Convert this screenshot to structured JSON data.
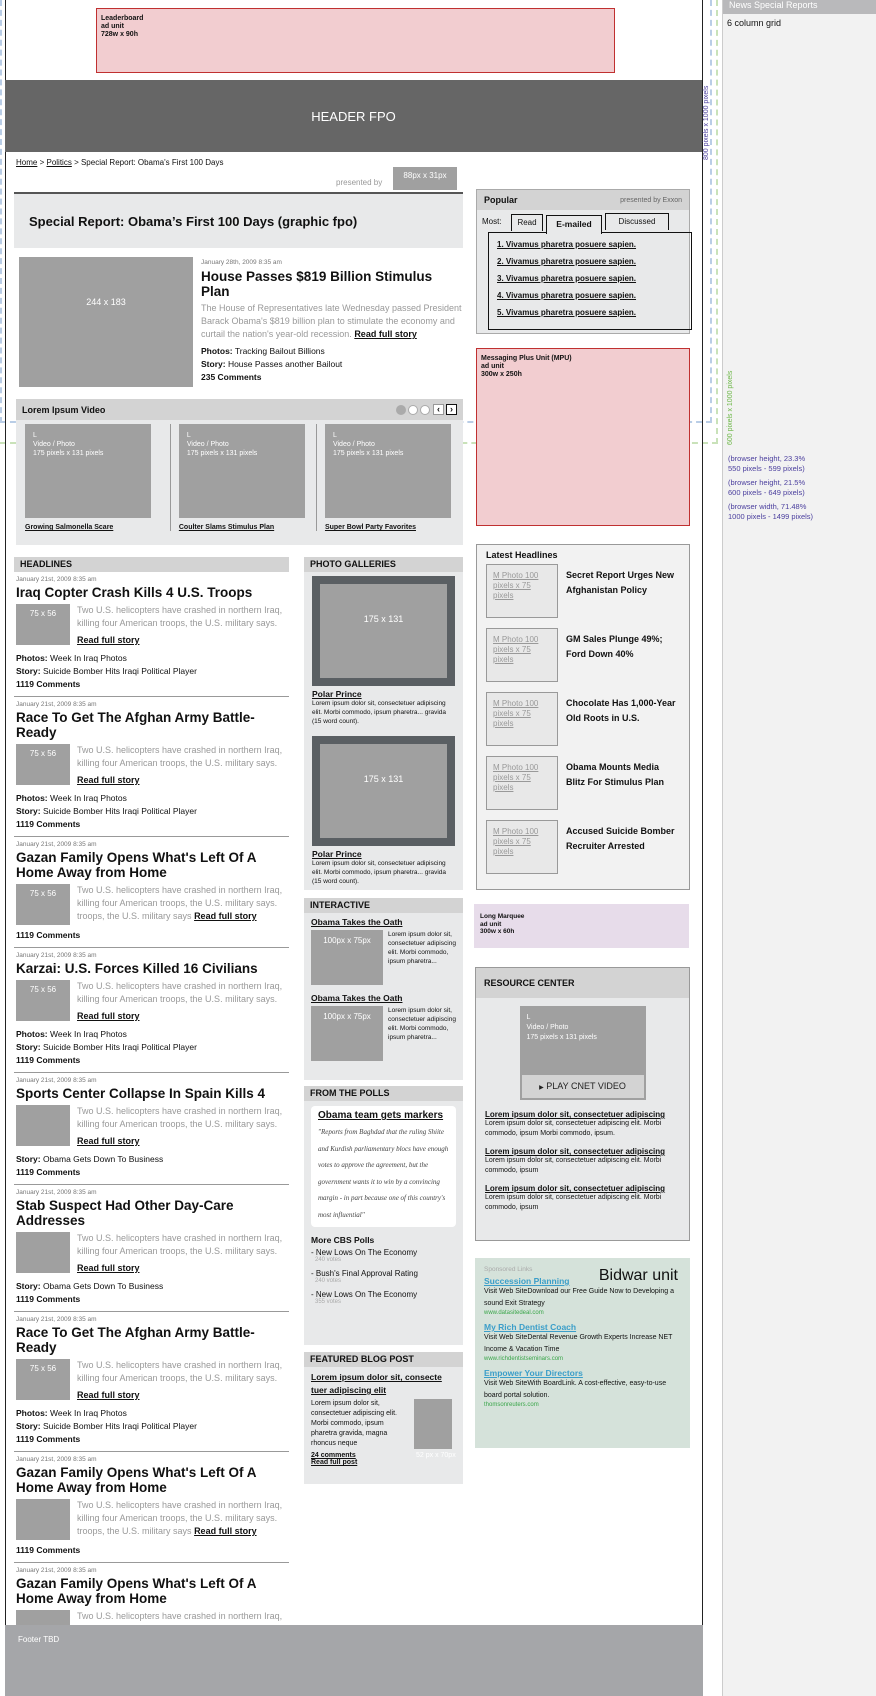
{
  "right_panel": {
    "title": "News Special Reports",
    "grid": "6 column grid",
    "vertical_800": "800 pixels x 1000 pixels",
    "vertical_600": "600 pixels x 1000 pixels",
    "notes": [
      {
        "line1": "(browser height, 23.3%",
        "line2": "550 pixels - 599 pixels)"
      },
      {
        "line1": "(browser height, 21.5%",
        "line2": "600 pixels - 649 pixels)"
      },
      {
        "line1": "(browser width, 71.48%",
        "line2": "1000 pixels - 1499 pixels)"
      }
    ]
  },
  "leaderboard": {
    "line1": "Leaderboard",
    "line2": "ad unit",
    "line3": "728w x 90h"
  },
  "header": {
    "label": "HEADER FPO"
  },
  "breadcrumb": {
    "home": "Home",
    "politics": "Politics",
    "current": "Special Report: Obama's First 100 Days",
    "sep": ">"
  },
  "sponsor": {
    "presented_by": "presented by",
    "box": "88px x 31px"
  },
  "special_title": "Special Report: Obama’s First 100 Days (graphic fpo)",
  "feature": {
    "image": "244 x 183",
    "date": "January 28th, 2009 8:35 am",
    "title": "House Passes $819 Billion Stimulus Plan",
    "summary": "The House of Representatives late Wednesday passed President Barack Obama's $819 billion plan to stimulate the economy and curtail the nation's year-old recession.",
    "read": "Read full story",
    "photos_label": "Photos:",
    "photos": "Tracking Bailout Billions",
    "story_label": "Story:",
    "story": "House Passes another Bailout",
    "comments": "235 Comments"
  },
  "video": {
    "title": "Lorem Ipsum Video",
    "items": [
      {
        "l": "L",
        "t1": "Video / Photo",
        "t2": "175 pixels x 131 pixels",
        "caption": "Growing Salmonella Scare"
      },
      {
        "l": "L",
        "t1": "Video / Photo",
        "t2": "175 pixels x 131 pixels",
        "caption": "Coulter Slams Stimulus Plan"
      },
      {
        "l": "L",
        "t1": "Video / Photo",
        "t2": "175 pixels x 131 pixels",
        "caption": "Super Bowl Party Favorites"
      }
    ],
    "page_count": 3,
    "active_page": 1
  },
  "headlines": {
    "title": "HEADLINES",
    "articles": [
      {
        "date": "January 21st, 2009 8:35 am",
        "title": "Iraq Copter Crash Kills 4 U.S. Troops",
        "thumb": "75 x 56",
        "summary": "Two U.S. helicopters have crashed in northern Iraq, killing four American troops, the U.S. military says.",
        "read": "Read full story",
        "photos": "Week In Iraq Photos",
        "story": "Suicide Bomber Hits Iraqi Political Player",
        "comments": "1119 Comments"
      },
      {
        "date": "January 21st, 2009 8:35 am",
        "title": "Race To Get The Afghan Army Battle-Ready",
        "thumb": "75 x 56",
        "summary": "Two U.S. helicopters have crashed in northern Iraq, killing four American troops, the U.S. military says.",
        "read": "Read full story",
        "photos": "Week In Iraq Photos",
        "story": "Suicide Bomber Hits Iraqi Political Player",
        "comments": "1119 Comments"
      },
      {
        "date": "January 21st, 2009 8:35 am",
        "title": "Gazan Family Opens What's Left Of A Home Away from Home",
        "thumb": "75 x 56",
        "summary": "Two U.S. helicopters have crashed in northern Iraq, killing four American troops, the U.S. military says. troops, the U.S. military says",
        "read_inline": "Read full story",
        "comments": "1119 Comments"
      },
      {
        "date": "January 21st, 2009 8:35 am",
        "title": "Karzai: U.S. Forces Killed 16 Civilians",
        "thumb": "75 x 56",
        "summary": "Two U.S. helicopters have crashed in northern Iraq, killing four American troops, the U.S. military says.",
        "read": "Read full story",
        "photos": "Week In Iraq Photos",
        "story": "Suicide Bomber Hits Iraqi Political Player",
        "comments": "1119 Comments"
      },
      {
        "date": "January 21st, 2009 8:35 am",
        "title": "Sports Center Collapse In Spain Kills 4",
        "thumb": "",
        "summary": "Two U.S. helicopters have crashed in northern Iraq, killing four American troops, the U.S. military says.",
        "read": "Read full story",
        "story": "Obama Gets Down To Business",
        "comments": "1119 Comments"
      },
      {
        "date": "January 21st, 2009 8:35 am",
        "title": "Stab Suspect Had Other Day-Care Addresses",
        "thumb": "",
        "summary": "Two U.S. helicopters have crashed in northern Iraq, killing four American troops, the U.S. military says.",
        "read": "Read full story",
        "story": "Obama Gets Down To Business",
        "comments": "1119 Comments"
      },
      {
        "date": "January 21st, 2009 8:35 am",
        "title": "Race To Get The Afghan Army Battle-Ready",
        "thumb": "75 x 56",
        "summary": "Two U.S. helicopters have crashed in northern Iraq, killing four American troops, the U.S. military says.",
        "read": "Read full story",
        "photos": "Week In Iraq Photos",
        "story": "Suicide Bomber Hits Iraqi Political Player",
        "comments": "1119 Comments"
      },
      {
        "date": "January 21st, 2009 8:35 am",
        "title": "Gazan Family Opens What's Left Of A Home Away from Home",
        "thumb": "",
        "summary": "Two U.S. helicopters have crashed in northern Iraq, killing four American troops, the U.S. military says. troops, the U.S. military says",
        "read_inline": "Read full story",
        "comments": "1119 Comments"
      },
      {
        "date": "January 21st, 2009 8:35 am",
        "title": "Gazan Family Opens What's Left Of A Home Away from Home",
        "thumb": "",
        "summary": "Two U.S. helicopters have crashed in northern Iraq, killing four American troops, the U.S. military says. troops, the U.S. military says",
        "read_inline": "Read full story",
        "comments": "1119 Comments"
      }
    ],
    "photos_label": "Photos:",
    "story_label": "Story:"
  },
  "galleries": {
    "title": "PHOTO GALLERIES",
    "items": [
      {
        "image": "175 x 131",
        "title": "Polar Prince",
        "text": "Lorem ipsum dolor sit, consectetuer adipiscing elit. Morbi commodo, ipsum pharetra... gravida (15 word count)."
      },
      {
        "image": "175 x 131",
        "title": "Polar Prince",
        "text": "Lorem ipsum dolor sit, consectetuer adipiscing elit. Morbi commodo, ipsum pharetra... gravida (15 word count)."
      }
    ]
  },
  "interactive": {
    "title": "INTERACTIVE",
    "items": [
      {
        "title": "Obama Takes the Oath",
        "image": "100px x 75px",
        "text": "Lorem ipsum dolor sit, consectetuer adipiscing elit. Morbi commodo, ipsum pharetra..."
      },
      {
        "title": "Obama Takes the Oath",
        "image": "100px x 75px",
        "text": "Lorem ipsum dolor sit, consectetuer adipiscing elit. Morbi commodo, ipsum pharetra..."
      }
    ]
  },
  "polls": {
    "title": "FROM THE POLLS",
    "card_title": "Obama team gets markers",
    "quote": "\"Reports from Baghdad that the ruling Shiite and Kurdish parliamentary blocs have enough votes to approve the agreement, but the government wants it to win by a convincing margin - in part because one of this country's most influential\"",
    "more": "More CBS Polls",
    "items": [
      {
        "label": "- New Lows On The Economy",
        "votes": "240 votes"
      },
      {
        "label": "- Bush's Final Approval Rating",
        "votes": "240 votes"
      },
      {
        "label": "- New Lows On The Economy",
        "votes": "355 votes"
      }
    ]
  },
  "blog": {
    "title": "FEATURED BLOG POST",
    "post_title": "Lorem ipsum dolor sit, consecte tuer adipiscing elit",
    "text": "Lorem ipsum dolor sit, consectetuer adipiscing elit. Morbi commodo, ipsum pharetra gravida, magna rhoncus neque",
    "comments": "24 comments",
    "read": "Read full post",
    "image": "52 px x 70px"
  },
  "popular": {
    "title": "Popular",
    "presented": "presented by Exxon",
    "most": "Most:",
    "tabs": [
      "Read",
      "E-mailed",
      "Discussed"
    ],
    "active_tab": "E-mailed",
    "items": [
      "1. Vivamus pharetra posuere sapien.",
      "2. Vivamus pharetra posuere sapien.",
      "3. Vivamus pharetra posuere sapien.",
      "4. Vivamus pharetra posuere sapien.",
      "5. Vivamus pharetra posuere sapien."
    ]
  },
  "mpu": {
    "line1": "Messaging Plus Unit (MPU)",
    "line2": "ad unit",
    "line3": "300w x 250h"
  },
  "latest": {
    "title": "Latest Headlines",
    "items": [
      {
        "photo": "M Photo 100 pixels x 75 pixels",
        "title": "Secret Report Urges New Afghanistan Policy"
      },
      {
        "photo": "M Photo 100 pixels x 75 pixels",
        "title": "GM Sales Plunge 49%; Ford Down 40%"
      },
      {
        "photo": "M Photo 100 pixels x 75 pixels",
        "title": "Chocolate Has 1,000-Year Old Roots in U.S."
      },
      {
        "photo": "M Photo 100 pixels x 75 pixels",
        "title": "Obama Mounts Media Blitz For Stimulus Plan"
      },
      {
        "photo": "M Photo 100 pixels x 75 pixels",
        "title": "Accused Suicide Bomber Recruiter Arrested"
      }
    ]
  },
  "marquee": {
    "line1": "Long Marquee",
    "line2": "ad unit",
    "line3": "300w x 60h"
  },
  "resource": {
    "title": "RESOURCE CENTER",
    "video_l": "L",
    "video_t1": "Video / Photo",
    "video_t2": "175 pixels x 131 pixels",
    "play": "PLAY CNET VIDEO",
    "items": [
      {
        "title": "Lorem ipsum dolor sit, consectetuer adipiscing",
        "text": "Lorem ipsum dolor sit, consectetuer adipiscing elit. Morbi commodo, ipsum Morbi commodo, ipsum."
      },
      {
        "title": "Lorem ipsum dolor sit, consectetuer adipiscing",
        "text": "Lorem ipsum dolor sit, consectetuer adipiscing elit. Morbi commodo, ipsum"
      },
      {
        "title": "Lorem ipsum dolor sit, consectetuer adipiscing",
        "text": "Lorem ipsum dolor sit, consectetuer adipiscing elit. Morbi commodo, ipsum"
      }
    ]
  },
  "bidwar": {
    "sponsored": "Sponsored Links",
    "title": "Bidwar unit",
    "links": [
      {
        "title": "Succession Planning",
        "text": "Visit Web SiteDownload our Free Guide Now to Developing a sound Exit Strategy",
        "url": "www.datasitedeal.com"
      },
      {
        "title": "My Rich Dentist Coach",
        "text": "Visit Web SiteDental Revenue Growth Experts Increase NET Income & Vacation Time",
        "url": "www.richdentistseminars.com"
      },
      {
        "title": "Empower Your Directors",
        "text": "Visit Web SiteWith BoardLink. A cost-effective, easy-to-use board portal solution.",
        "url": "thomsonreuters.com"
      }
    ]
  },
  "footer": {
    "label": "Footer TBD"
  },
  "colors": {
    "ad_pink": "#f2cdd0",
    "ad_border": "#c03030",
    "header": "#666666",
    "panel": "#e8e9ea",
    "bidwar": "#d5e2da",
    "marquee": "#e7dcea",
    "link_blue": "#3b9ec9",
    "url_green": "#3aa64a"
  }
}
